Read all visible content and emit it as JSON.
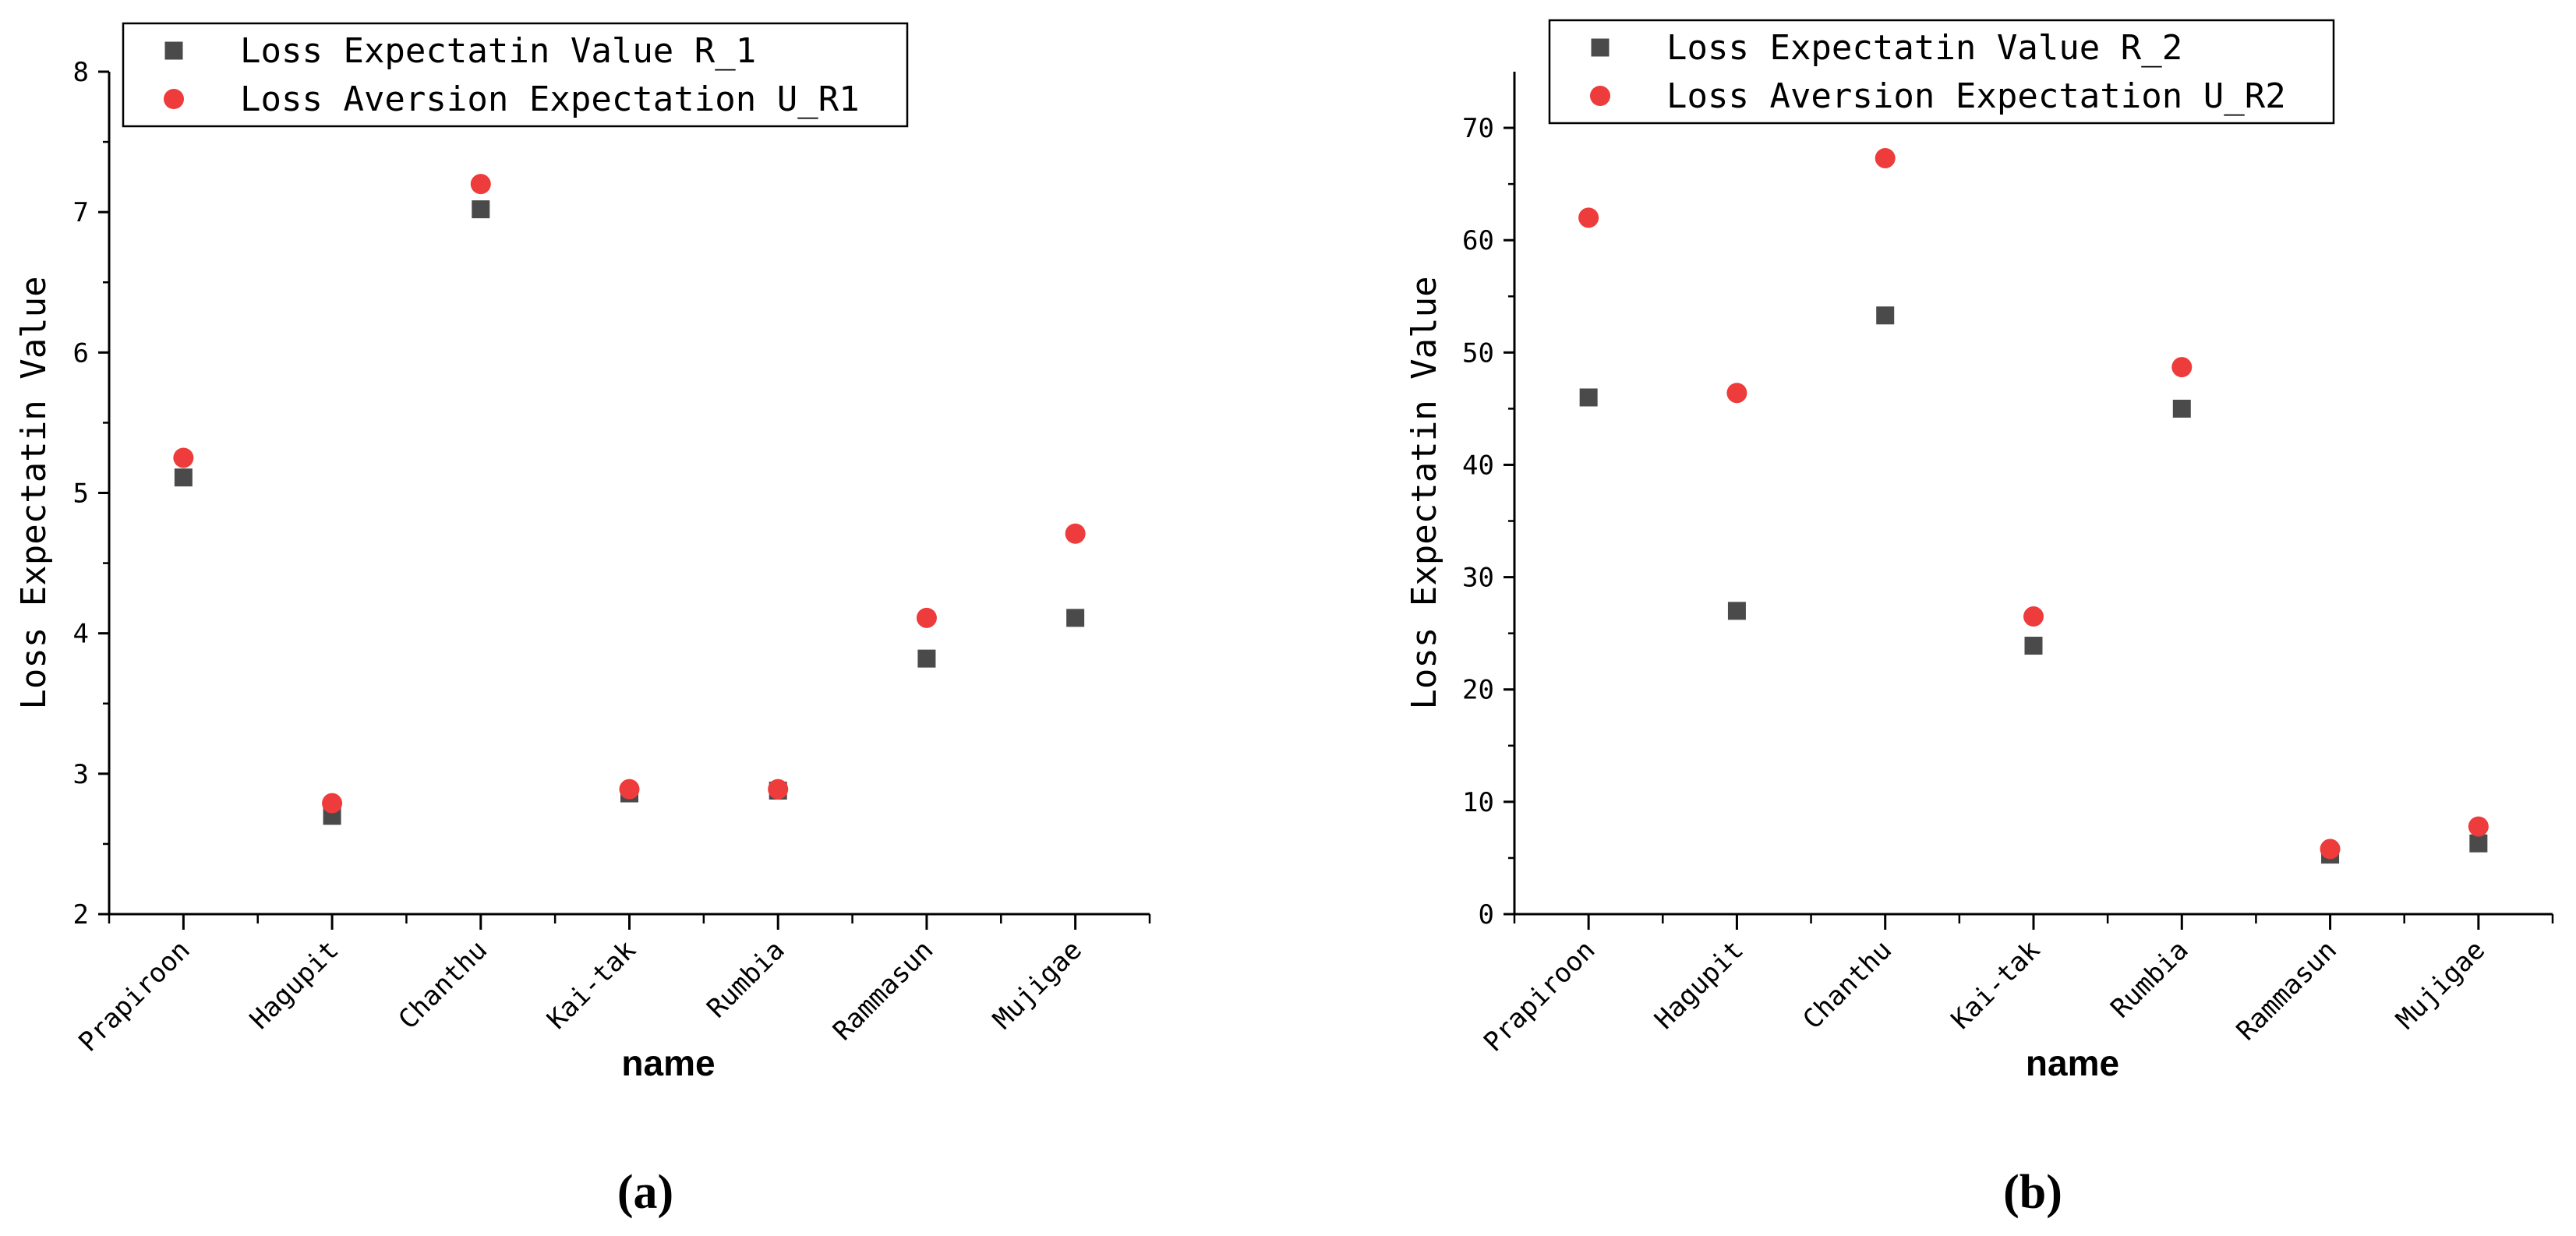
{
  "chart_data": [
    {
      "type": "scatter",
      "panel_label": "(a)",
      "categories": [
        "Prapiroon",
        "Hagupit",
        "Chanthu",
        "Kai-tak",
        "Rumbia",
        "Rammasun",
        "Mujigae"
      ],
      "series": [
        {
          "name": "Loss Expectatin Value R_1",
          "marker": "square",
          "color": "#4a4a4a",
          "values": [
            5.11,
            2.7,
            7.02,
            2.86,
            2.88,
            3.82,
            4.11
          ]
        },
        {
          "name": "Loss Aversion Expectation U_R1",
          "marker": "circle",
          "color": "#ee3b3b",
          "values": [
            5.25,
            2.79,
            7.2,
            2.89,
            2.89,
            4.11,
            4.71
          ]
        }
      ],
      "xlabel": "name",
      "ylabel": "Loss Expectatin Value",
      "ylim": [
        2,
        8
      ],
      "yticks": [
        2,
        3,
        4,
        5,
        6,
        7,
        8
      ],
      "legend_position": "top-left"
    },
    {
      "type": "scatter",
      "panel_label": "(b)",
      "categories": [
        "Prapiroon",
        "Hagupit",
        "Chanthu",
        "Kai-tak",
        "Rumbia",
        "Rammasun",
        "Mujigae"
      ],
      "series": [
        {
          "name": "Loss Expectatin Value R_2",
          "marker": "square",
          "color": "#4a4a4a",
          "values": [
            46.0,
            27.0,
            53.3,
            23.9,
            45.0,
            5.3,
            6.3
          ]
        },
        {
          "name": "Loss Aversion Expectation U_R2",
          "marker": "circle",
          "color": "#ee3b3b",
          "values": [
            62.0,
            46.4,
            67.3,
            26.5,
            48.7,
            5.8,
            7.8
          ]
        }
      ],
      "xlabel": "name",
      "ylabel": "Loss Expectatin Value",
      "ylim": [
        0,
        75
      ],
      "yticks": [
        0,
        10,
        20,
        30,
        40,
        50,
        60,
        70
      ],
      "legend_position": "top-left"
    }
  ]
}
